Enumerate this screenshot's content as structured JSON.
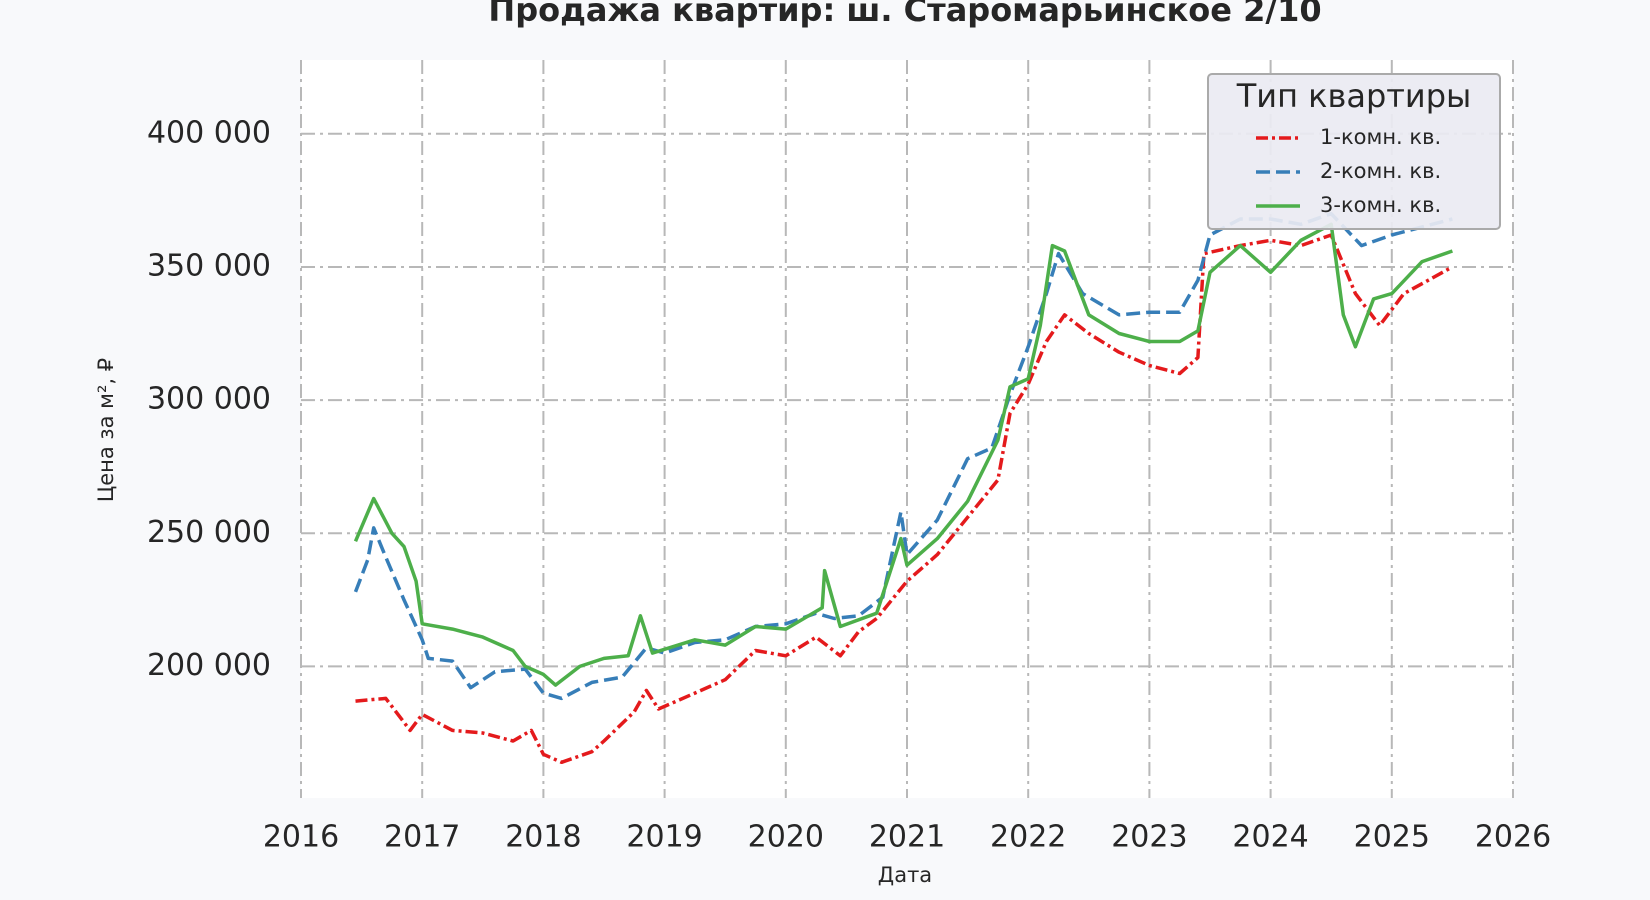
{
  "chart_data": {
    "type": "line",
    "title": "Продажа квартир: ш. Старомарьинское 2/10",
    "x_label": "Дата",
    "y_label": "Цена за м², ₽",
    "legend_title": "Тип квартиры",
    "legend": "upper right",
    "grid": true,
    "xlim": [
      2016,
      2026
    ],
    "xticks": [
      2016,
      2017,
      2018,
      2019,
      2020,
      2021,
      2022,
      2023,
      2024,
      2025,
      2026
    ],
    "ylim": [
      150600,
      427700
    ],
    "yticks": [
      {
        "value": 200000,
        "label": "200 000"
      },
      {
        "value": 250000,
        "label": "250 000"
      },
      {
        "value": 300000,
        "label": "300 000"
      },
      {
        "value": 350000,
        "label": "350 000"
      },
      {
        "value": 400000,
        "label": "400 000"
      }
    ],
    "series": [
      {
        "name": "1-комн. кв.",
        "color": "#e41a1c",
        "x": [
          2016.45,
          2016.7,
          2016.9,
          2017.0,
          2017.25,
          2017.5,
          2017.75,
          2017.9,
          2018.0,
          2018.15,
          2018.4,
          2018.5,
          2018.75,
          2018.85,
          2018.95,
          2019.25,
          2019.5,
          2019.75,
          2020.0,
          2020.25,
          2020.45,
          2020.6,
          2020.75,
          2021.0,
          2021.25,
          2021.5,
          2021.75,
          2021.85,
          2022.0,
          2022.15,
          2022.3,
          2022.5,
          2022.75,
          2023.0,
          2023.25,
          2023.4,
          2023.45,
          2023.75,
          2024.0,
          2024.25,
          2024.5,
          2024.7,
          2024.9,
          2025.1,
          2025.3,
          2025.5
        ],
        "values": [
          187000,
          188000,
          176000,
          182000,
          176000,
          175000,
          172000,
          176000,
          167000,
          164000,
          168000,
          172000,
          183000,
          191000,
          184000,
          190000,
          195000,
          206000,
          204000,
          211000,
          204000,
          213000,
          218000,
          232000,
          242000,
          256000,
          270000,
          295000,
          306000,
          322000,
          332000,
          325000,
          318000,
          313000,
          310000,
          316000,
          355000,
          358000,
          360000,
          358000,
          362000,
          340000,
          328000,
          340000,
          345000,
          350000
        ]
      },
      {
        "name": "2-комн. кв.",
        "color": "#377eb8",
        "x": [
          2016.45,
          2016.55,
          2016.6,
          2016.7,
          2016.85,
          2017.0,
          2017.05,
          2017.25,
          2017.4,
          2017.6,
          2017.85,
          2018.0,
          2018.15,
          2018.4,
          2018.65,
          2018.85,
          2019.0,
          2019.25,
          2019.5,
          2019.75,
          2020.0,
          2020.25,
          2020.4,
          2020.6,
          2020.8,
          2020.95,
          2021.0,
          2021.25,
          2021.5,
          2021.7,
          2021.85,
          2022.0,
          2022.15,
          2022.25,
          2022.45,
          2022.75,
          2023.0,
          2023.25,
          2023.4,
          2023.5,
          2023.75,
          2024.0,
          2024.25,
          2024.5,
          2024.75,
          2025.0,
          2025.25,
          2025.5
        ],
        "values": [
          228000,
          240000,
          252000,
          241000,
          225000,
          210000,
          203000,
          202000,
          192000,
          198000,
          199000,
          190000,
          188000,
          194000,
          196000,
          207000,
          205000,
          209000,
          210000,
          215000,
          216000,
          220000,
          218000,
          219000,
          226000,
          258000,
          242000,
          255000,
          278000,
          282000,
          302000,
          320000,
          340000,
          355000,
          340000,
          332000,
          333000,
          333000,
          345000,
          362000,
          368000,
          368000,
          366000,
          370000,
          358000,
          362000,
          365000,
          368000
        ]
      },
      {
        "name": "3-комн. кв.",
        "color": "#4daf4a",
        "x": [
          2016.45,
          2016.6,
          2016.75,
          2016.85,
          2016.95,
          2017.0,
          2017.25,
          2017.5,
          2017.75,
          2017.85,
          2018.0,
          2018.1,
          2018.3,
          2018.5,
          2018.7,
          2018.8,
          2018.9,
          2019.25,
          2019.5,
          2019.75,
          2020.0,
          2020.3,
          2020.32,
          2020.45,
          2020.75,
          2020.95,
          2021.0,
          2021.25,
          2021.5,
          2021.75,
          2021.85,
          2022.0,
          2022.1,
          2022.2,
          2022.3,
          2022.5,
          2022.75,
          2023.0,
          2023.25,
          2023.4,
          2023.5,
          2023.75,
          2024.0,
          2024.25,
          2024.5,
          2024.6,
          2024.7,
          2024.85,
          2025.0,
          2025.25,
          2025.5
        ],
        "values": [
          247000,
          263000,
          250000,
          245000,
          232000,
          216000,
          214000,
          211000,
          206000,
          200000,
          197000,
          193000,
          200000,
          203000,
          204000,
          219000,
          205000,
          210000,
          208000,
          215000,
          214000,
          222000,
          236000,
          215000,
          220000,
          248000,
          238000,
          248000,
          262000,
          285000,
          305000,
          308000,
          328000,
          358000,
          356000,
          332000,
          325000,
          322000,
          322000,
          326000,
          348000,
          358000,
          348000,
          360000,
          366000,
          332000,
          320000,
          338000,
          340000,
          352000,
          356000
        ]
      }
    ]
  }
}
